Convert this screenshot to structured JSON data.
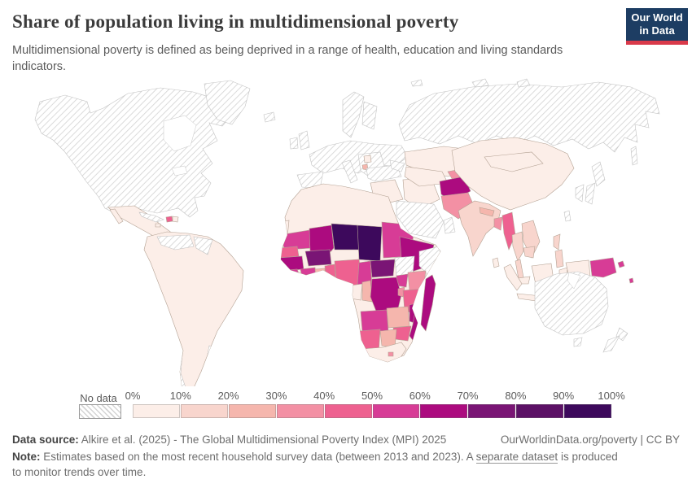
{
  "header": {
    "title": "Share of population living in multidimensional poverty",
    "subtitle": "Multidimensional poverty is defined as being deprived in a range of health, education and living standards indicators.",
    "logo": {
      "line1": "Our World",
      "line2": "in Data",
      "bg_color": "#1d3d63",
      "accent_color": "#d93a4a"
    }
  },
  "legend": {
    "no_data_label": "No data",
    "tick_labels": [
      "0%",
      "10%",
      "20%",
      "30%",
      "40%",
      "50%",
      "60%",
      "70%",
      "80%",
      "90%",
      "100%"
    ],
    "bins": [
      {
        "range": "0-10%",
        "color": "#fceee8"
      },
      {
        "range": "10-20%",
        "color": "#f8d5cd"
      },
      {
        "range": "20-30%",
        "color": "#f5b6ad"
      },
      {
        "range": "30-40%",
        "color": "#f390a4"
      },
      {
        "range": "40-50%",
        "color": "#ee6190"
      },
      {
        "range": "50-60%",
        "color": "#d73c96"
      },
      {
        "range": "60-70%",
        "color": "#ac0b7f"
      },
      {
        "range": "70-80%",
        "color": "#7a1575"
      },
      {
        "range": "80-90%",
        "color": "#5c1166"
      },
      {
        "range": "90-100%",
        "color": "#3d095c"
      }
    ]
  },
  "map": {
    "ocean_color": "#ffffff",
    "regions": [
      {
        "id": "canada-usa",
        "color": "no-data"
      },
      {
        "id": "greenland",
        "color": "no-data"
      },
      {
        "id": "iceland",
        "color": "no-data"
      },
      {
        "id": "cuba",
        "color": "no-data"
      },
      {
        "id": "venezuela",
        "color": "no-data"
      },
      {
        "id": "guyanas",
        "color": "no-data"
      },
      {
        "id": "chile",
        "color": "no-data"
      },
      {
        "id": "uruguay",
        "color": "no-data"
      },
      {
        "id": "norway-sweden",
        "color": "no-data"
      },
      {
        "id": "finland",
        "color": "no-data"
      },
      {
        "id": "uk",
        "color": "no-data"
      },
      {
        "id": "ireland",
        "color": "no-data"
      },
      {
        "id": "europe-mainland",
        "color": "no-data"
      },
      {
        "id": "iberia",
        "color": "no-data"
      },
      {
        "id": "italy",
        "color": "no-data"
      },
      {
        "id": "balkans",
        "color": "no-data"
      },
      {
        "id": "russia",
        "color": "no-data"
      },
      {
        "id": "arctic-islands",
        "color": "no-data"
      },
      {
        "id": "sakhalin",
        "color": "no-data"
      },
      {
        "id": "turkey",
        "color": "no-data"
      },
      {
        "id": "caucasus",
        "color": "no-data"
      },
      {
        "id": "saudi-arabia",
        "color": "no-data"
      },
      {
        "id": "oman",
        "color": "no-data"
      },
      {
        "id": "south-sudan",
        "color": "no-data"
      },
      {
        "id": "somalia",
        "color": "no-data"
      },
      {
        "id": "japan",
        "color": "no-data"
      },
      {
        "id": "south-korea",
        "color": "no-data"
      },
      {
        "id": "taiwan",
        "color": "no-data"
      },
      {
        "id": "australia",
        "color": "no-data"
      },
      {
        "id": "tasmania",
        "color": "no-data"
      },
      {
        "id": "new-zealand",
        "color": "no-data"
      },
      {
        "id": "mexico-central-america",
        "color": "#fceee8"
      },
      {
        "id": "dominican-republic",
        "color": "#fceee8"
      },
      {
        "id": "jamaica",
        "color": "#fceee8"
      },
      {
        "id": "south-america",
        "color": "#fceee8"
      },
      {
        "id": "north-africa",
        "color": "#fceee8"
      },
      {
        "id": "western-sahara",
        "color": "#fceee8"
      },
      {
        "id": "gabon",
        "color": "#fceee8"
      },
      {
        "id": "south-africa",
        "color": "#fceee8"
      },
      {
        "id": "syria-iraq",
        "color": "#fceee8"
      },
      {
        "id": "iran",
        "color": "#fceee8"
      },
      {
        "id": "kazakhstan",
        "color": "#fceee8"
      },
      {
        "id": "uzbekistan-turkmenistan",
        "color": "#fceee8"
      },
      {
        "id": "china",
        "color": "#fceee8"
      },
      {
        "id": "mongolia",
        "color": "#fceee8"
      },
      {
        "id": "malaysia",
        "color": "#fceee8"
      },
      {
        "id": "indonesia",
        "color": "#fceee8"
      },
      {
        "id": "sri-lanka",
        "color": "#fceee8"
      },
      {
        "id": "serbia",
        "color": "#fceee8"
      },
      {
        "id": "india",
        "color": "#f8d5cd"
      },
      {
        "id": "thailand",
        "color": "#f8d5cd"
      },
      {
        "id": "vietnam-laos",
        "color": "#f8d5cd"
      },
      {
        "id": "cambodia",
        "color": "#f8d5cd"
      },
      {
        "id": "honduras-nicaragua",
        "color": "#f8d5cd"
      },
      {
        "id": "philippines",
        "color": "#f8d5cd"
      },
      {
        "id": "ghana",
        "color": "#f5b6ad"
      },
      {
        "id": "zambia",
        "color": "#f5b6ad"
      },
      {
        "id": "botswana",
        "color": "#f5b6ad"
      },
      {
        "id": "guatemala",
        "color": "#f5b6ad"
      },
      {
        "id": "congo",
        "color": "#f5b6ad"
      },
      {
        "id": "nepal",
        "color": "#f5b6ad"
      },
      {
        "id": "albania",
        "color": "#f5b6ad"
      },
      {
        "id": "pakistan",
        "color": "#f390a4"
      },
      {
        "id": "yemen",
        "color": "#f390a4"
      },
      {
        "id": "kenya",
        "color": "#f390a4"
      },
      {
        "id": "bangladesh",
        "color": "#f390a4"
      },
      {
        "id": "tajikistan",
        "color": "#f390a4"
      },
      {
        "id": "rwanda-burundi",
        "color": "#f390a4"
      },
      {
        "id": "lesotho",
        "color": "#f390a4"
      },
      {
        "id": "nigeria",
        "color": "#ee6190"
      },
      {
        "id": "tanzania",
        "color": "#ee6190"
      },
      {
        "id": "namibia",
        "color": "#ee6190"
      },
      {
        "id": "zimbabwe",
        "color": "#ee6190"
      },
      {
        "id": "myanmar",
        "color": "#ee6190"
      },
      {
        "id": "senegal",
        "color": "#ee6190"
      },
      {
        "id": "haiti",
        "color": "#ee6190"
      },
      {
        "id": "togo-benin",
        "color": "#ee6190"
      },
      {
        "id": "mauritania",
        "color": "#d73c96"
      },
      {
        "id": "sudan",
        "color": "#d73c96"
      },
      {
        "id": "cote-divoire",
        "color": "#d73c96"
      },
      {
        "id": "angola",
        "color": "#d73c96"
      },
      {
        "id": "cameroon",
        "color": "#d73c96"
      },
      {
        "id": "sierra-leone-liberia",
        "color": "#d73c96"
      },
      {
        "id": "uganda",
        "color": "#d73c96"
      },
      {
        "id": "papua-new-guinea",
        "color": "#d73c96"
      },
      {
        "id": "solomon-islands",
        "color": "#d73c96"
      },
      {
        "id": "mali",
        "color": "#ac0b7f"
      },
      {
        "id": "guinea",
        "color": "#ac0b7f"
      },
      {
        "id": "ethiopia",
        "color": "#ac0b7f"
      },
      {
        "id": "drc",
        "color": "#ac0b7f"
      },
      {
        "id": "afghanistan",
        "color": "#ac0b7f"
      },
      {
        "id": "madagascar",
        "color": "#ac0b7f"
      },
      {
        "id": "mozambique",
        "color": "#ac0b7f"
      },
      {
        "id": "malawi",
        "color": "#ac0b7f"
      },
      {
        "id": "burkina-faso",
        "color": "#7a1575"
      },
      {
        "id": "central-african-republic",
        "color": "#7a1575"
      },
      {
        "id": "niger",
        "color": "#3d095c"
      },
      {
        "id": "chad",
        "color": "#3d095c"
      }
    ]
  },
  "footer": {
    "source_label": "Data source:",
    "source_text": " Alkire et al. (2025) - The Global Multidimensional Poverty Index (MPI) 2025",
    "attribution": "OurWorldinData.org/poverty | CC BY",
    "note_label": "Note:",
    "note_before_link": " Estimates based on the most recent household survey data (between 2013 and 2023). A ",
    "note_link": "separate dataset",
    "note_after_link": " is produced to monitor trends over time."
  }
}
